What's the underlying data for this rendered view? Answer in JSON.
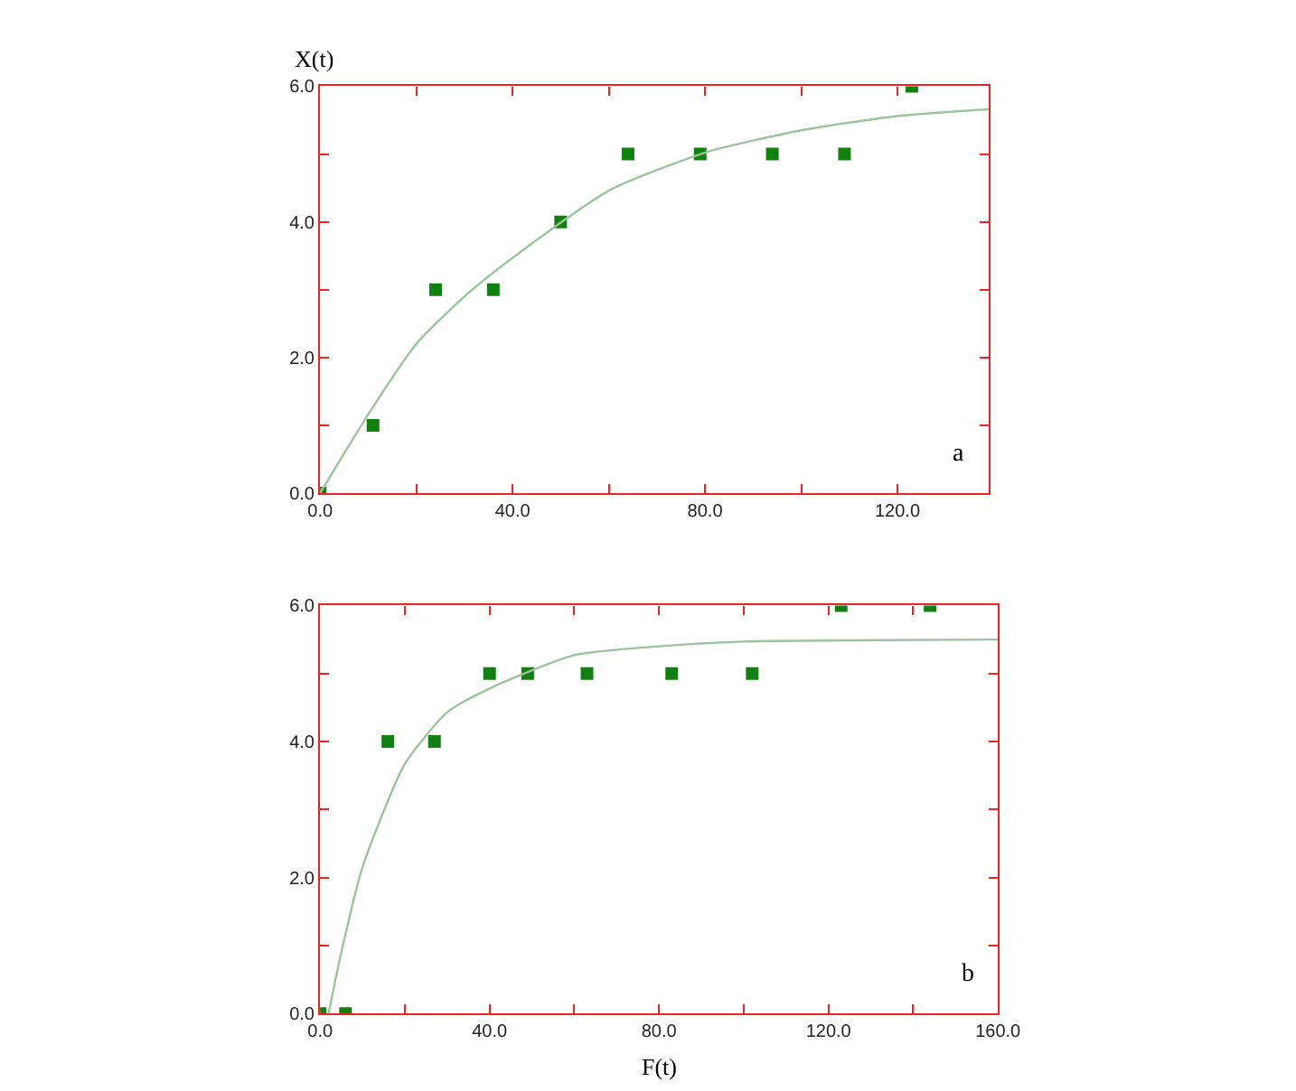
{
  "chart_data": [
    {
      "type": "scatter",
      "ylabel": "X(t)",
      "annotations": [
        "a"
      ],
      "marker": "square",
      "xlim": [
        0,
        139
      ],
      "ylim": [
        0,
        6
      ],
      "xticks": [
        {
          "value": 0,
          "label": "0.0"
        },
        {
          "value": 20,
          "label": null
        },
        {
          "value": 40,
          "label": "40.0"
        },
        {
          "value": 60,
          "label": null
        },
        {
          "value": 80,
          "label": "80.0"
        },
        {
          "value": 100,
          "label": null
        },
        {
          "value": 120,
          "label": "120.0"
        }
      ],
      "yticks": [
        {
          "value": 0,
          "label": "0.0"
        },
        {
          "value": 1,
          "label": null
        },
        {
          "value": 2,
          "label": "2.0"
        },
        {
          "value": 3,
          "label": null
        },
        {
          "value": 4,
          "label": "4.0"
        },
        {
          "value": 5,
          "label": null
        },
        {
          "value": 6,
          "label": "6.0"
        }
      ],
      "series": [
        {
          "color": "#108010",
          "x": [
            0,
            11,
            24,
            36,
            50,
            64,
            79,
            94,
            109,
            123
          ],
          "values": [
            0,
            1,
            3,
            3,
            4,
            5,
            5,
            5,
            5,
            6
          ]
        },
        {
          "type": "line",
          "color": "#9cc49c",
          "marker": "none",
          "x": [
            0,
            10,
            20,
            30,
            40,
            60,
            80,
            100,
            120,
            139
          ],
          "values": [
            0,
            1.16,
            2.2,
            2.9,
            3.47,
            4.46,
            5.02,
            5.35,
            5.56,
            5.66
          ]
        }
      ]
    },
    {
      "type": "scatter",
      "xlabel": "F(t)",
      "annotations": [
        "b"
      ],
      "marker": "square",
      "xlim": [
        0,
        160
      ],
      "ylim": [
        0,
        6
      ],
      "xticks": [
        {
          "value": 0,
          "label": "0.0"
        },
        {
          "value": 20,
          "label": null
        },
        {
          "value": 40,
          "label": "40.0"
        },
        {
          "value": 60,
          "label": null
        },
        {
          "value": 80,
          "label": "80.0"
        },
        {
          "value": 100,
          "label": null
        },
        {
          "value": 120,
          "label": "120.0"
        },
        {
          "value": 140,
          "label": null
        },
        {
          "value": 160,
          "label": "160.0"
        }
      ],
      "yticks": [
        {
          "value": 0,
          "label": "0.0"
        },
        {
          "value": 1,
          "label": null
        },
        {
          "value": 2,
          "label": "2.0"
        },
        {
          "value": 3,
          "label": null
        },
        {
          "value": 4,
          "label": "4.0"
        },
        {
          "value": 5,
          "label": null
        },
        {
          "value": 6,
          "label": "6.0"
        }
      ],
      "series": [
        {
          "color": "#108010",
          "x": [
            0,
            6,
            16,
            27,
            40,
            49,
            63,
            83,
            102,
            123,
            144
          ],
          "values": [
            0,
            0,
            4,
            4,
            5,
            5,
            5,
            5,
            5,
            6,
            6
          ]
        },
        {
          "type": "line",
          "color": "#9cc49c",
          "marker": "none",
          "x": [
            2,
            5,
            10,
            20,
            30,
            40,
            60,
            80,
            100,
            160
          ],
          "values": [
            0,
            0.9,
            2.15,
            3.67,
            4.43,
            4.78,
            5.27,
            5.4,
            5.47,
            5.5
          ]
        }
      ]
    }
  ]
}
